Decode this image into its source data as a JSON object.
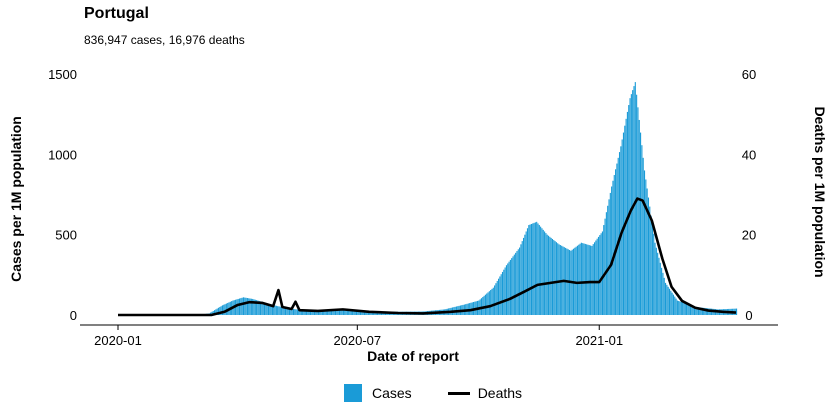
{
  "chart_data": {
    "type": "bar",
    "title": "Portugal",
    "subtitle": "836,947 cases, 16,976 deaths",
    "xlabel": "Date of report",
    "ylabel_left": "Cases per 1M population",
    "ylabel_right": "Deaths per 1M population",
    "x_range": [
      "2020-01-01",
      "2021-04-15"
    ],
    "x_ticks": [
      {
        "date": "2020-01-01",
        "label": "2020-01"
      },
      {
        "date": "2020-07-01",
        "label": "2020-07"
      },
      {
        "date": "2021-01-01",
        "label": "2021-01"
      }
    ],
    "ylim_left": [
      0,
      1600
    ],
    "yticks_left": [
      0,
      500,
      1000,
      1500
    ],
    "ylim_right": [
      0,
      64
    ],
    "yticks_right": [
      0,
      20,
      40,
      60
    ],
    "colors": {
      "cases": "#1a9bd7",
      "deaths": "#000000"
    },
    "legend_position": "bottom",
    "series": [
      {
        "name": "Cases",
        "kind": "bar",
        "axis": "left",
        "points": [
          [
            "2020-01-01",
            0
          ],
          [
            "2020-03-01",
            0
          ],
          [
            "2020-03-10",
            10
          ],
          [
            "2020-03-20",
            60
          ],
          [
            "2020-03-28",
            90
          ],
          [
            "2020-04-05",
            110
          ],
          [
            "2020-04-12",
            100
          ],
          [
            "2020-04-20",
            80
          ],
          [
            "2020-05-01",
            55
          ],
          [
            "2020-05-15",
            35
          ],
          [
            "2020-06-01",
            30
          ],
          [
            "2020-06-20",
            30
          ],
          [
            "2020-07-10",
            25
          ],
          [
            "2020-08-01",
            20
          ],
          [
            "2020-08-20",
            22
          ],
          [
            "2020-09-05",
            35
          ],
          [
            "2020-09-20",
            65
          ],
          [
            "2020-10-01",
            90
          ],
          [
            "2020-10-12",
            170
          ],
          [
            "2020-10-22",
            310
          ],
          [
            "2020-11-01",
            420
          ],
          [
            "2020-11-08",
            560
          ],
          [
            "2020-11-14",
            580
          ],
          [
            "2020-11-22",
            500
          ],
          [
            "2020-12-01",
            440
          ],
          [
            "2020-12-10",
            400
          ],
          [
            "2020-12-18",
            450
          ],
          [
            "2020-12-26",
            430
          ],
          [
            "2021-01-03",
            520
          ],
          [
            "2021-01-10",
            800
          ],
          [
            "2021-01-17",
            1050
          ],
          [
            "2021-01-24",
            1350
          ],
          [
            "2021-01-28",
            1450
          ],
          [
            "2021-02-04",
            900
          ],
          [
            "2021-02-12",
            450
          ],
          [
            "2021-02-20",
            200
          ],
          [
            "2021-03-01",
            90
          ],
          [
            "2021-03-15",
            50
          ],
          [
            "2021-04-01",
            35
          ],
          [
            "2021-04-15",
            40
          ]
        ]
      },
      {
        "name": "Deaths",
        "kind": "line",
        "axis": "right",
        "points": [
          [
            "2020-01-01",
            0
          ],
          [
            "2020-03-12",
            0
          ],
          [
            "2020-03-22",
            0.8
          ],
          [
            "2020-04-01",
            2.5
          ],
          [
            "2020-04-10",
            3.2
          ],
          [
            "2020-04-20",
            3.0
          ],
          [
            "2020-04-28",
            2.2
          ],
          [
            "2020-05-02",
            6.2
          ],
          [
            "2020-05-05",
            2.0
          ],
          [
            "2020-05-12",
            1.5
          ],
          [
            "2020-05-15",
            3.3
          ],
          [
            "2020-05-18",
            1.2
          ],
          [
            "2020-06-01",
            1.0
          ],
          [
            "2020-06-20",
            1.4
          ],
          [
            "2020-07-10",
            0.8
          ],
          [
            "2020-08-01",
            0.5
          ],
          [
            "2020-08-20",
            0.4
          ],
          [
            "2020-09-10",
            0.8
          ],
          [
            "2020-09-25",
            1.2
          ],
          [
            "2020-10-10",
            2.2
          ],
          [
            "2020-10-25",
            4.0
          ],
          [
            "2020-11-05",
            5.8
          ],
          [
            "2020-11-15",
            7.5
          ],
          [
            "2020-11-25",
            8.0
          ],
          [
            "2020-12-05",
            8.5
          ],
          [
            "2020-12-15",
            8.0
          ],
          [
            "2020-12-25",
            8.2
          ],
          [
            "2021-01-01",
            8.2
          ],
          [
            "2021-01-10",
            12.5
          ],
          [
            "2021-01-18",
            20.5
          ],
          [
            "2021-01-25",
            26.0
          ],
          [
            "2021-01-30",
            29.0
          ],
          [
            "2021-02-03",
            28.5
          ],
          [
            "2021-02-10",
            23.5
          ],
          [
            "2021-02-18",
            14.0
          ],
          [
            "2021-02-25",
            7.0
          ],
          [
            "2021-03-05",
            3.5
          ],
          [
            "2021-03-15",
            1.8
          ],
          [
            "2021-03-25",
            1.1
          ],
          [
            "2021-04-05",
            0.8
          ],
          [
            "2021-04-15",
            0.6
          ]
        ]
      }
    ]
  }
}
